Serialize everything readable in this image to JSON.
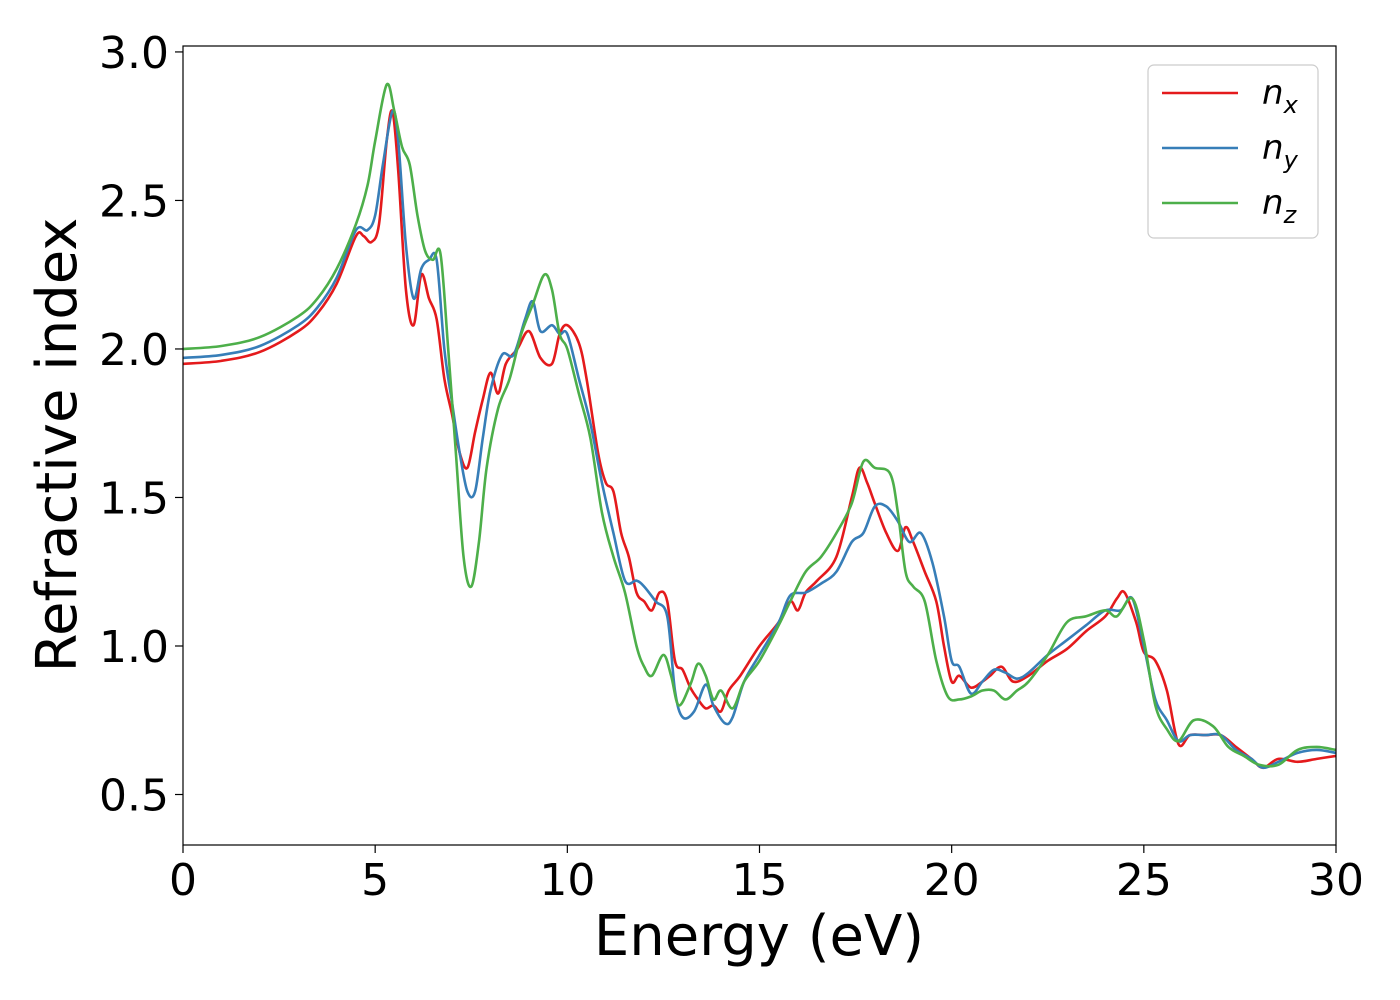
{
  "chart_data": {
    "type": "line",
    "xlabel": "Energy (eV)",
    "ylabel": "Refractive index",
    "xlim": [
      0,
      30
    ],
    "ylim": [
      0.33,
      3.02
    ],
    "xticks": [
      "0",
      "5",
      "10",
      "15",
      "20",
      "25",
      "30"
    ],
    "yticks": [
      "0.5",
      "1.0",
      "1.5",
      "2.0",
      "2.5",
      "3.0"
    ],
    "grid": false,
    "legend_position": "top-right",
    "series": [
      {
        "name": "n",
        "subscript": "x",
        "color": "#e41a1c",
        "points": [
          [
            0,
            1.95
          ],
          [
            1,
            1.96
          ],
          [
            2,
            1.99
          ],
          [
            3,
            2.06
          ],
          [
            3.5,
            2.12
          ],
          [
            4,
            2.22
          ],
          [
            4.5,
            2.38
          ],
          [
            4.7,
            2.38
          ],
          [
            4.9,
            2.36
          ],
          [
            5.1,
            2.42
          ],
          [
            5.3,
            2.7
          ],
          [
            5.45,
            2.8
          ],
          [
            5.6,
            2.6
          ],
          [
            5.8,
            2.2
          ],
          [
            6.0,
            2.08
          ],
          [
            6.2,
            2.25
          ],
          [
            6.4,
            2.17
          ],
          [
            6.6,
            2.1
          ],
          [
            6.8,
            1.9
          ],
          [
            7.0,
            1.78
          ],
          [
            7.2,
            1.65
          ],
          [
            7.4,
            1.6
          ],
          [
            7.6,
            1.72
          ],
          [
            7.8,
            1.83
          ],
          [
            8.0,
            1.92
          ],
          [
            8.2,
            1.85
          ],
          [
            8.4,
            1.95
          ],
          [
            8.7,
            2.0
          ],
          [
            9.0,
            2.06
          ],
          [
            9.3,
            1.97
          ],
          [
            9.6,
            1.95
          ],
          [
            9.8,
            2.05
          ],
          [
            10.0,
            2.08
          ],
          [
            10.3,
            2.02
          ],
          [
            10.5,
            1.9
          ],
          [
            10.8,
            1.65
          ],
          [
            11.0,
            1.55
          ],
          [
            11.2,
            1.52
          ],
          [
            11.4,
            1.38
          ],
          [
            11.6,
            1.3
          ],
          [
            11.8,
            1.18
          ],
          [
            12.0,
            1.15
          ],
          [
            12.2,
            1.12
          ],
          [
            12.4,
            1.18
          ],
          [
            12.6,
            1.15
          ],
          [
            12.8,
            0.95
          ],
          [
            13.0,
            0.92
          ],
          [
            13.2,
            0.86
          ],
          [
            13.4,
            0.82
          ],
          [
            13.6,
            0.79
          ],
          [
            13.8,
            0.8
          ],
          [
            14.0,
            0.78
          ],
          [
            14.2,
            0.85
          ],
          [
            14.5,
            0.9
          ],
          [
            15.0,
            1.0
          ],
          [
            15.5,
            1.08
          ],
          [
            15.8,
            1.15
          ],
          [
            16.0,
            1.12
          ],
          [
            16.2,
            1.18
          ],
          [
            16.5,
            1.22
          ],
          [
            17.0,
            1.3
          ],
          [
            17.4,
            1.5
          ],
          [
            17.6,
            1.6
          ],
          [
            17.8,
            1.55
          ],
          [
            18.0,
            1.48
          ],
          [
            18.3,
            1.38
          ],
          [
            18.6,
            1.32
          ],
          [
            18.8,
            1.4
          ],
          [
            19.0,
            1.35
          ],
          [
            19.3,
            1.25
          ],
          [
            19.6,
            1.15
          ],
          [
            19.8,
            1.0
          ],
          [
            20.0,
            0.88
          ],
          [
            20.2,
            0.9
          ],
          [
            20.5,
            0.86
          ],
          [
            20.8,
            0.88
          ],
          [
            21.0,
            0.9
          ],
          [
            21.3,
            0.93
          ],
          [
            21.6,
            0.88
          ],
          [
            22.0,
            0.9
          ],
          [
            22.5,
            0.95
          ],
          [
            23.0,
            0.99
          ],
          [
            23.5,
            1.05
          ],
          [
            24.0,
            1.1
          ],
          [
            24.3,
            1.16
          ],
          [
            24.5,
            1.18
          ],
          [
            24.8,
            1.08
          ],
          [
            25.0,
            0.98
          ],
          [
            25.3,
            0.95
          ],
          [
            25.6,
            0.85
          ],
          [
            25.9,
            0.67
          ],
          [
            26.2,
            0.7
          ],
          [
            26.6,
            0.7
          ],
          [
            27.0,
            0.7
          ],
          [
            27.4,
            0.66
          ],
          [
            27.8,
            0.62
          ],
          [
            28.1,
            0.59
          ],
          [
            28.5,
            0.62
          ],
          [
            29.0,
            0.61
          ],
          [
            29.5,
            0.62
          ],
          [
            30.0,
            0.63
          ]
        ]
      },
      {
        "name": "n",
        "subscript": "y",
        "color": "#377eb8",
        "points": [
          [
            0,
            1.97
          ],
          [
            1,
            1.98
          ],
          [
            2,
            2.01
          ],
          [
            3,
            2.08
          ],
          [
            3.5,
            2.14
          ],
          [
            4,
            2.24
          ],
          [
            4.5,
            2.4
          ],
          [
            4.8,
            2.4
          ],
          [
            5.0,
            2.45
          ],
          [
            5.2,
            2.62
          ],
          [
            5.45,
            2.8
          ],
          [
            5.6,
            2.7
          ],
          [
            5.8,
            2.35
          ],
          [
            6.0,
            2.17
          ],
          [
            6.2,
            2.27
          ],
          [
            6.4,
            2.3
          ],
          [
            6.6,
            2.3
          ],
          [
            6.8,
            2.0
          ],
          [
            7.0,
            1.82
          ],
          [
            7.2,
            1.65
          ],
          [
            7.4,
            1.52
          ],
          [
            7.6,
            1.52
          ],
          [
            7.8,
            1.7
          ],
          [
            8.0,
            1.86
          ],
          [
            8.3,
            1.98
          ],
          [
            8.6,
            1.98
          ],
          [
            8.9,
            2.1
          ],
          [
            9.1,
            2.16
          ],
          [
            9.3,
            2.06
          ],
          [
            9.6,
            2.08
          ],
          [
            9.8,
            2.05
          ],
          [
            10.0,
            2.05
          ],
          [
            10.3,
            1.9
          ],
          [
            10.6,
            1.75
          ],
          [
            10.9,
            1.55
          ],
          [
            11.2,
            1.38
          ],
          [
            11.5,
            1.22
          ],
          [
            11.8,
            1.22
          ],
          [
            12.0,
            1.2
          ],
          [
            12.3,
            1.15
          ],
          [
            12.6,
            1.1
          ],
          [
            12.8,
            0.85
          ],
          [
            13.0,
            0.76
          ],
          [
            13.3,
            0.78
          ],
          [
            13.6,
            0.87
          ],
          [
            13.8,
            0.8
          ],
          [
            14.1,
            0.74
          ],
          [
            14.3,
            0.76
          ],
          [
            14.6,
            0.88
          ],
          [
            15.0,
            0.97
          ],
          [
            15.5,
            1.08
          ],
          [
            15.8,
            1.17
          ],
          [
            16.2,
            1.18
          ],
          [
            16.6,
            1.21
          ],
          [
            17.0,
            1.25
          ],
          [
            17.4,
            1.35
          ],
          [
            17.7,
            1.38
          ],
          [
            18.0,
            1.47
          ],
          [
            18.3,
            1.47
          ],
          [
            18.6,
            1.42
          ],
          [
            18.9,
            1.35
          ],
          [
            19.2,
            1.38
          ],
          [
            19.5,
            1.28
          ],
          [
            19.8,
            1.1
          ],
          [
            20.0,
            0.95
          ],
          [
            20.2,
            0.93
          ],
          [
            20.5,
            0.84
          ],
          [
            20.8,
            0.88
          ],
          [
            21.1,
            0.92
          ],
          [
            21.4,
            0.91
          ],
          [
            21.7,
            0.89
          ],
          [
            22.0,
            0.91
          ],
          [
            22.5,
            0.97
          ],
          [
            23.0,
            1.02
          ],
          [
            23.5,
            1.07
          ],
          [
            24.0,
            1.12
          ],
          [
            24.4,
            1.12
          ],
          [
            24.7,
            1.16
          ],
          [
            25.0,
            1.0
          ],
          [
            25.3,
            0.82
          ],
          [
            25.6,
            0.75
          ],
          [
            25.9,
            0.68
          ],
          [
            26.2,
            0.7
          ],
          [
            26.6,
            0.7
          ],
          [
            27.0,
            0.7
          ],
          [
            27.4,
            0.65
          ],
          [
            27.8,
            0.62
          ],
          [
            28.1,
            0.59
          ],
          [
            28.5,
            0.61
          ],
          [
            29.0,
            0.64
          ],
          [
            29.5,
            0.65
          ],
          [
            30.0,
            0.64
          ]
        ]
      },
      {
        "name": "n",
        "subscript": "z",
        "color": "#4daf4a",
        "points": [
          [
            0,
            2.0
          ],
          [
            1,
            2.01
          ],
          [
            2,
            2.04
          ],
          [
            3,
            2.11
          ],
          [
            3.5,
            2.17
          ],
          [
            4,
            2.27
          ],
          [
            4.5,
            2.42
          ],
          [
            4.8,
            2.55
          ],
          [
            5.0,
            2.7
          ],
          [
            5.3,
            2.89
          ],
          [
            5.5,
            2.8
          ],
          [
            5.7,
            2.68
          ],
          [
            5.9,
            2.62
          ],
          [
            6.1,
            2.45
          ],
          [
            6.3,
            2.33
          ],
          [
            6.5,
            2.3
          ],
          [
            6.7,
            2.32
          ],
          [
            6.9,
            2.0
          ],
          [
            7.1,
            1.65
          ],
          [
            7.3,
            1.3
          ],
          [
            7.5,
            1.2
          ],
          [
            7.7,
            1.35
          ],
          [
            7.9,
            1.6
          ],
          [
            8.2,
            1.8
          ],
          [
            8.5,
            1.9
          ],
          [
            8.8,
            2.05
          ],
          [
            9.1,
            2.15
          ],
          [
            9.4,
            2.25
          ],
          [
            9.6,
            2.2
          ],
          [
            9.8,
            2.05
          ],
          [
            10.0,
            2.0
          ],
          [
            10.3,
            1.85
          ],
          [
            10.6,
            1.7
          ],
          [
            10.9,
            1.45
          ],
          [
            11.2,
            1.3
          ],
          [
            11.5,
            1.18
          ],
          [
            11.8,
            1.0
          ],
          [
            12.0,
            0.93
          ],
          [
            12.2,
            0.9
          ],
          [
            12.5,
            0.97
          ],
          [
            12.7,
            0.9
          ],
          [
            12.9,
            0.8
          ],
          [
            13.2,
            0.87
          ],
          [
            13.4,
            0.94
          ],
          [
            13.6,
            0.9
          ],
          [
            13.8,
            0.82
          ],
          [
            14.0,
            0.85
          ],
          [
            14.3,
            0.79
          ],
          [
            14.6,
            0.88
          ],
          [
            15.0,
            0.95
          ],
          [
            15.5,
            1.07
          ],
          [
            15.8,
            1.15
          ],
          [
            16.2,
            1.25
          ],
          [
            16.6,
            1.3
          ],
          [
            17.0,
            1.38
          ],
          [
            17.4,
            1.48
          ],
          [
            17.7,
            1.62
          ],
          [
            18.0,
            1.6
          ],
          [
            18.4,
            1.58
          ],
          [
            18.6,
            1.45
          ],
          [
            18.8,
            1.25
          ],
          [
            19.0,
            1.2
          ],
          [
            19.3,
            1.15
          ],
          [
            19.6,
            0.95
          ],
          [
            19.9,
            0.83
          ],
          [
            20.2,
            0.82
          ],
          [
            20.5,
            0.83
          ],
          [
            20.8,
            0.85
          ],
          [
            21.1,
            0.85
          ],
          [
            21.4,
            0.82
          ],
          [
            21.7,
            0.85
          ],
          [
            22.0,
            0.88
          ],
          [
            22.5,
            0.97
          ],
          [
            23.0,
            1.08
          ],
          [
            23.5,
            1.1
          ],
          [
            24.0,
            1.12
          ],
          [
            24.3,
            1.1
          ],
          [
            24.7,
            1.16
          ],
          [
            25.0,
            1.02
          ],
          [
            25.3,
            0.8
          ],
          [
            25.6,
            0.72
          ],
          [
            25.9,
            0.68
          ],
          [
            26.3,
            0.75
          ],
          [
            26.8,
            0.73
          ],
          [
            27.2,
            0.66
          ],
          [
            27.6,
            0.63
          ],
          [
            28.0,
            0.6
          ],
          [
            28.5,
            0.6
          ],
          [
            29.0,
            0.65
          ],
          [
            29.5,
            0.66
          ],
          [
            30.0,
            0.65
          ]
        ]
      }
    ]
  }
}
